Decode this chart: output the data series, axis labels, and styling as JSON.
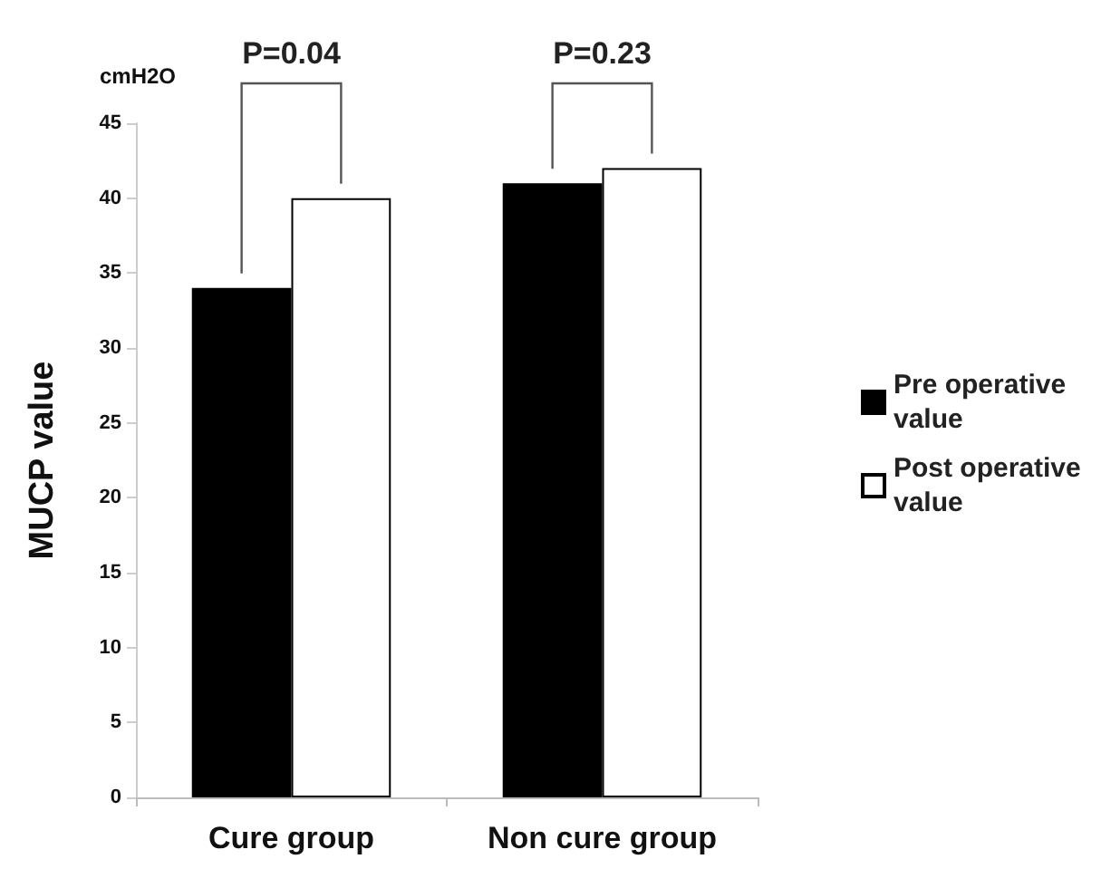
{
  "chart_data": {
    "type": "bar",
    "ylabel": "MUCP value",
    "categories": [
      "Cure group",
      "Non cure group"
    ],
    "series": [
      {
        "name": "Pre operative value",
        "color": "#000000",
        "values": [
          34,
          41
        ]
      },
      {
        "name": "Post operative value",
        "color": "#ffffff",
        "values": [
          40,
          42
        ]
      }
    ],
    "ylim": [
      0,
      45
    ],
    "yticks": [
      0,
      5,
      10,
      15,
      20,
      25,
      30,
      35,
      40,
      45
    ],
    "grid": false,
    "legend": "right",
    "annotations": [
      "P=0.04",
      "P=0.23",
      "cmH2O"
    ]
  }
}
